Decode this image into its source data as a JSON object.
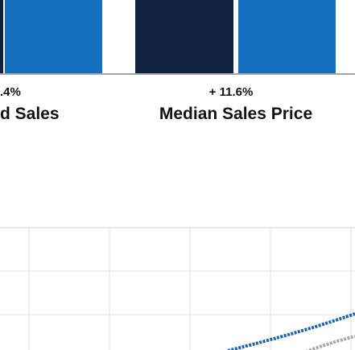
{
  "metrics": [
    {
      "change": ".4%",
      "label": "d Sales"
    },
    {
      "change": "+ 11.6%",
      "label": "Median Sales Price"
    }
  ]
}
